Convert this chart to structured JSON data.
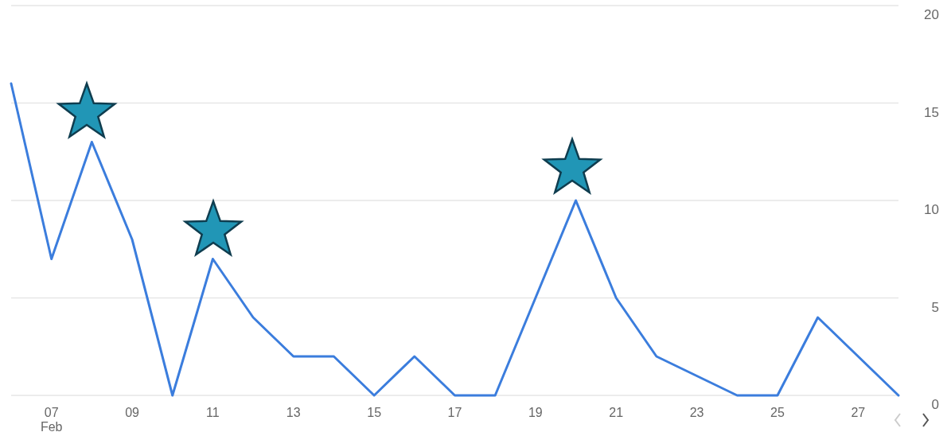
{
  "chart_data": {
    "type": "line",
    "x": [
      "--02-06",
      "--02-07",
      "--02-08",
      "--02-09",
      "--02-10",
      "--02-11",
      "--02-12",
      "--02-13",
      "--02-14",
      "--02-15",
      "--02-16",
      "--02-17",
      "--02-18",
      "--02-19",
      "--02-20",
      "--02-21",
      "--02-22",
      "--02-23",
      "--02-24",
      "--02-25",
      "--02-26",
      "--02-27",
      "--02-28"
    ],
    "series": [
      {
        "color": "#3b7ddd",
        "values": [
          16,
          7,
          13,
          8,
          0,
          7,
          4,
          2,
          2,
          0,
          2,
          0,
          0,
          5,
          10,
          5,
          2,
          1,
          0,
          0,
          4,
          2,
          0
        ]
      }
    ],
    "xlim": [
      "--02-06",
      "--02-28"
    ],
    "xticks": [
      {
        "value": "--02-07",
        "label": "07 Feb"
      },
      {
        "value": "--02-09",
        "label": "09"
      },
      {
        "value": "--02-11",
        "label": "11"
      },
      {
        "value": "--02-13",
        "label": "13"
      },
      {
        "value": "--02-15",
        "label": "15"
      },
      {
        "value": "--02-17",
        "label": "17"
      },
      {
        "value": "--02-19",
        "label": "19"
      },
      {
        "value": "--02-21",
        "label": "21"
      },
      {
        "value": "--02-23",
        "label": "23"
      },
      {
        "value": "--02-25",
        "label": "25"
      },
      {
        "value": "--02-27",
        "label": "27"
      }
    ],
    "ylim": [
      0,
      20
    ],
    "yticks": [
      0,
      5,
      10,
      15,
      20
    ],
    "grid": "y",
    "marker": "none",
    "line_style": "solid"
  }
}
